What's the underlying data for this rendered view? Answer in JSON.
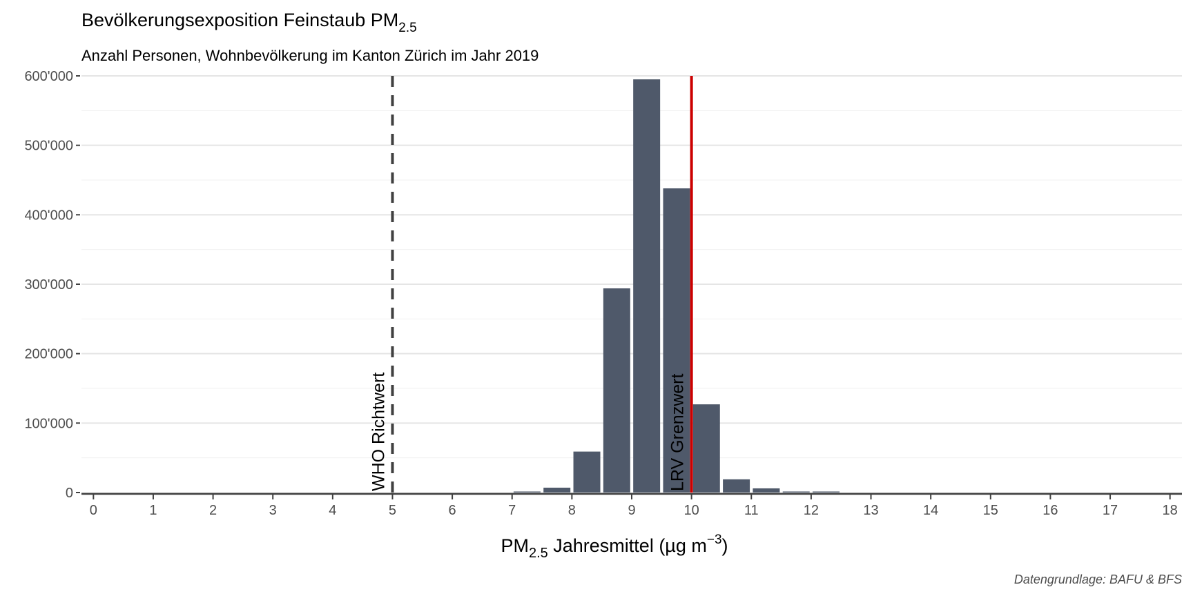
{
  "chart_data": {
    "type": "bar",
    "title": {
      "text": "Bevölkerungsexposition Feinstaub PM",
      "subscript": "2.5"
    },
    "subtitle": "Anzahl Personen, Wohnbevölkerung im Kanton Zürich im Jahr 2019",
    "xlabel": {
      "prefix": "PM",
      "subscript": "2.5",
      "middle": " Jahresmittel (µg m",
      "superscript": "−3",
      "suffix": ")"
    },
    "ylabel": "",
    "caption": "Datengrundlage: BAFU & BFS",
    "xlim": [
      -0.2,
      18.2
    ],
    "ylim": [
      0,
      600000
    ],
    "x_ticks": [
      "0",
      "1",
      "2",
      "3",
      "4",
      "5",
      "6",
      "7",
      "8",
      "9",
      "10",
      "11",
      "12",
      "13",
      "14",
      "15",
      "16",
      "17",
      "18"
    ],
    "y_ticks": [
      {
        "value": 0,
        "label": "0"
      },
      {
        "value": 100000,
        "label": "100'000"
      },
      {
        "value": 200000,
        "label": "200'000"
      },
      {
        "value": 300000,
        "label": "300'000"
      },
      {
        "value": 400000,
        "label": "400'000"
      },
      {
        "value": 500000,
        "label": "500'000"
      },
      {
        "value": 600000,
        "label": "600'000"
      }
    ],
    "bin_width": 0.5,
    "bars": [
      {
        "x": 7.25,
        "value": 1000
      },
      {
        "x": 7.75,
        "value": 7000
      },
      {
        "x": 8.25,
        "value": 59000
      },
      {
        "x": 8.75,
        "value": 294000
      },
      {
        "x": 9.25,
        "value": 595000
      },
      {
        "x": 9.75,
        "value": 438000
      },
      {
        "x": 10.25,
        "value": 127000
      },
      {
        "x": 10.75,
        "value": 19000
      },
      {
        "x": 11.25,
        "value": 6000
      },
      {
        "x": 11.75,
        "value": 1500
      },
      {
        "x": 12.25,
        "value": 800
      }
    ],
    "bar_color": "#4f596a",
    "reference_lines": [
      {
        "x": 5,
        "label": "WHO Richtwert",
        "color": "#404040",
        "style": "dashed"
      },
      {
        "x": 10,
        "label": "LRV Grenzwert",
        "color": "#cc0000",
        "style": "solid"
      }
    ],
    "grid": true,
    "legend": "none"
  }
}
